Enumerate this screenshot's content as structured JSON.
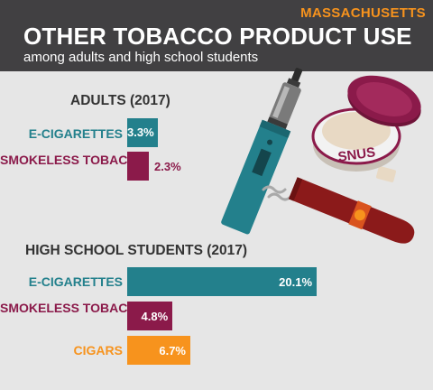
{
  "header": {
    "state": "MASSACHUSETTS",
    "title": "OTHER TOBACCO PRODUCT USE",
    "subtitle": "among adults and high school students"
  },
  "illustration": {
    "snus_label": "SNUS"
  },
  "colors": {
    "e_cigarettes": "#23808c",
    "smokeless_tobacco": "#8b1a4a",
    "cigars": "#f7931d",
    "header_bg": "#414042",
    "state_label": "#f7931d"
  },
  "chart_data": [
    {
      "type": "bar",
      "orientation": "horizontal",
      "title": "ADULTS (2017)",
      "categories": [
        "E-CIGARETTES",
        "SMOKELESS TOBACCO"
      ],
      "values": [
        3.3,
        2.3
      ],
      "value_labels": [
        "3.3%",
        "2.3%"
      ],
      "unit": "%"
    },
    {
      "type": "bar",
      "orientation": "horizontal",
      "title": "HIGH SCHOOL STUDENTS (2017)",
      "categories": [
        "E-CIGARETTES",
        "SMOKELESS TOBACCO",
        "CIGARS"
      ],
      "values": [
        20.1,
        4.8,
        6.7
      ],
      "value_labels": [
        "20.1%",
        "4.8%",
        "6.7%"
      ],
      "unit": "%"
    }
  ]
}
